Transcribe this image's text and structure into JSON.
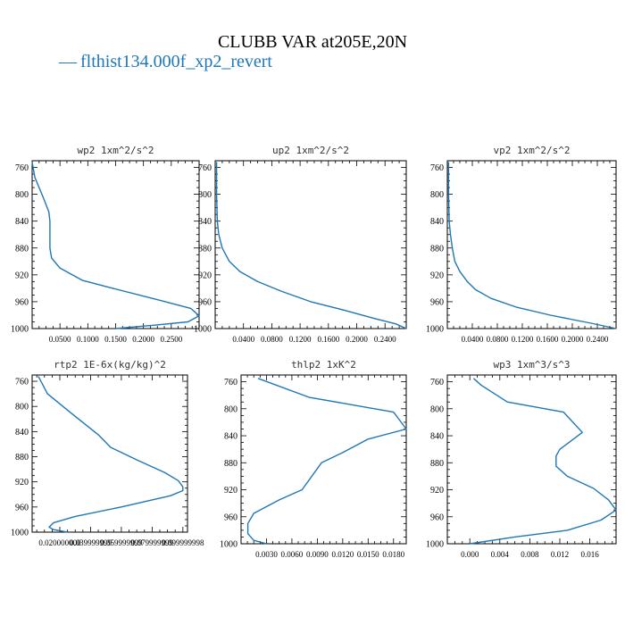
{
  "title": "CLUBB VAR at205E,20N",
  "legend": {
    "dash": "—",
    "label": "flthist134.000f_xp2_revert"
  },
  "colors": {
    "line": "#1f77b4",
    "axis": "#000000"
  },
  "chart_data": [
    {
      "type": "line",
      "title": "wp2   1xm^2/s^2",
      "y_axis": {
        "label": "",
        "range": [
          1000,
          750
        ],
        "ticks": [
          "760",
          "800",
          "840",
          "880",
          "920",
          "960",
          "1000"
        ]
      },
      "x_axis": {
        "range": [
          0.0,
          0.3
        ],
        "ticks": [
          {
            "v": 0.05,
            "label": "0.0500"
          },
          {
            "v": 0.1,
            "label": "0.1000"
          },
          {
            "v": 0.15,
            "label": "0.1500"
          },
          {
            "v": 0.2,
            "label": "0.2000"
          },
          {
            "v": 0.25,
            "label": "0.2500"
          }
        ]
      },
      "series": [
        {
          "x": [
            0.0,
            0.005,
            0.02,
            0.03,
            0.032,
            0.032,
            0.035,
            0.05,
            0.09,
            0.145,
            0.23,
            0.285,
            0.3,
            0.28,
            0.22,
            0.15
          ],
          "y": [
            752,
            775,
            805,
            826,
            840,
            880,
            895,
            910,
            928,
            940,
            958,
            970,
            981,
            990,
            995,
            1000
          ]
        }
      ]
    },
    {
      "type": "line",
      "title": "up2   1xm^2/s^2",
      "y_axis": {
        "label": "",
        "range": [
          1000,
          750
        ],
        "ticks": [
          "760",
          "800",
          "840",
          "880",
          "920",
          "960",
          "1000"
        ]
      },
      "x_axis": {
        "range": [
          0.0,
          0.27
        ],
        "ticks": [
          {
            "v": 0.04,
            "label": "0.0400"
          },
          {
            "v": 0.08,
            "label": "0.0800"
          },
          {
            "v": 0.12,
            "label": "0.1200"
          },
          {
            "v": 0.16,
            "label": "0.1600"
          },
          {
            "v": 0.2,
            "label": "0.2000"
          },
          {
            "v": 0.24,
            "label": "0.2400"
          }
        ]
      },
      "series": [
        {
          "x": [
            0.002,
            0.002,
            0.003,
            0.005,
            0.01,
            0.02,
            0.035,
            0.06,
            0.095,
            0.135,
            0.18,
            0.225,
            0.255,
            0.27
          ],
          "y": [
            752,
            800,
            840,
            860,
            880,
            900,
            915,
            930,
            945,
            960,
            972,
            985,
            993,
            1000
          ]
        }
      ]
    },
    {
      "type": "line",
      "title": "vp2   1xm^2/s^2",
      "y_axis": {
        "label": "",
        "range": [
          1000,
          750
        ],
        "ticks": [
          "760",
          "800",
          "840",
          "880",
          "920",
          "960",
          "1000"
        ]
      },
      "x_axis": {
        "range": [
          0.0,
          0.27
        ],
        "ticks": [
          {
            "v": 0.04,
            "label": "0.0400"
          },
          {
            "v": 0.08,
            "label": "0.0800"
          },
          {
            "v": 0.12,
            "label": "0.1200"
          },
          {
            "v": 0.16,
            "label": "0.1600"
          },
          {
            "v": 0.2,
            "label": "0.2000"
          },
          {
            "v": 0.24,
            "label": "0.2400"
          }
        ]
      },
      "series": [
        {
          "x": [
            0.002,
            0.002,
            0.003,
            0.005,
            0.008,
            0.012,
            0.02,
            0.032,
            0.045,
            0.07,
            0.11,
            0.165,
            0.23,
            0.27
          ],
          "y": [
            752,
            800,
            840,
            860,
            880,
            900,
            915,
            930,
            942,
            955,
            968,
            980,
            992,
            1000
          ]
        }
      ]
    },
    {
      "type": "line",
      "title": "rtp2   1E-6x(kg/kg)^2",
      "y_axis": {
        "label": "",
        "range": [
          1000,
          750
        ],
        "ticks": [
          "760",
          "800",
          "840",
          "880",
          "920",
          "960",
          "1000"
        ]
      },
      "x_axis": {
        "range": [
          0.002,
          0.103
        ],
        "ticks": [
          {
            "v": 0.02,
            "label": "0.020000000"
          },
          {
            "v": 0.04,
            "label": "0.039999999"
          },
          {
            "v": 0.06,
            "label": "0.059999999"
          },
          {
            "v": 0.08,
            "label": "0.079999999"
          },
          {
            "v": 0.1,
            "label": "0.099999998"
          }
        ]
      },
      "series": [
        {
          "x": [
            0.006,
            0.012,
            0.027,
            0.045,
            0.053,
            0.07,
            0.088,
            0.097,
            0.1,
            0.1,
            0.092,
            0.06,
            0.03,
            0.016,
            0.013,
            0.016,
            0.025
          ],
          "y": [
            752,
            780,
            810,
            845,
            865,
            885,
            905,
            918,
            928,
            934,
            942,
            960,
            975,
            985,
            992,
            996,
            1000
          ]
        }
      ]
    },
    {
      "type": "line",
      "title": "thlp2   1xK^2",
      "y_axis": {
        "label": "",
        "range": [
          1000,
          750
        ],
        "ticks": [
          "760",
          "800",
          "840",
          "880",
          "920",
          "960",
          "1000"
        ]
      },
      "x_axis": {
        "range": [
          0.0,
          0.0195
        ],
        "ticks": [
          {
            "v": 0.003,
            "label": "0.0030"
          },
          {
            "v": 0.006,
            "label": "0.0060"
          },
          {
            "v": 0.009,
            "label": "0.0090"
          },
          {
            "v": 0.012,
            "label": "0.0120"
          },
          {
            "v": 0.015,
            "label": "0.0150"
          },
          {
            "v": 0.018,
            "label": "0.0180"
          }
        ]
      },
      "series": [
        {
          "x": [
            0.002,
            0.008,
            0.018,
            0.0195,
            0.015,
            0.012,
            0.0095,
            0.0072,
            0.0045,
            0.0015,
            0.0008,
            0.0008,
            0.0015,
            0.003
          ],
          "y": [
            755,
            783,
            805,
            830,
            845,
            865,
            880,
            920,
            935,
            955,
            970,
            985,
            995,
            1000
          ]
        }
      ]
    },
    {
      "type": "line",
      "title": "wp3   1xm^3/s^3",
      "y_axis": {
        "label": "",
        "range": [
          1000,
          750
        ],
        "ticks": [
          "760",
          "800",
          "840",
          "880",
          "920",
          "960",
          "1000"
        ]
      },
      "x_axis": {
        "range": [
          -0.003,
          0.0195
        ],
        "ticks": [
          {
            "v": 0.0,
            "label": "0.000"
          },
          {
            "v": 0.004,
            "label": "0.004"
          },
          {
            "v": 0.008,
            "label": "0.008"
          },
          {
            "v": 0.012,
            "label": "0.012"
          },
          {
            "v": 0.016,
            "label": "0.016"
          }
        ]
      },
      "series": [
        {
          "x": [
            0.0005,
            0.0015,
            0.005,
            0.0125,
            0.015,
            0.012,
            0.0115,
            0.0115,
            0.013,
            0.0165,
            0.0185,
            0.0195,
            0.0175,
            0.013,
            0.006,
            0.0
          ],
          "y": [
            755,
            765,
            790,
            805,
            835,
            860,
            870,
            885,
            900,
            918,
            935,
            950,
            965,
            980,
            990,
            1000
          ]
        }
      ]
    }
  ]
}
